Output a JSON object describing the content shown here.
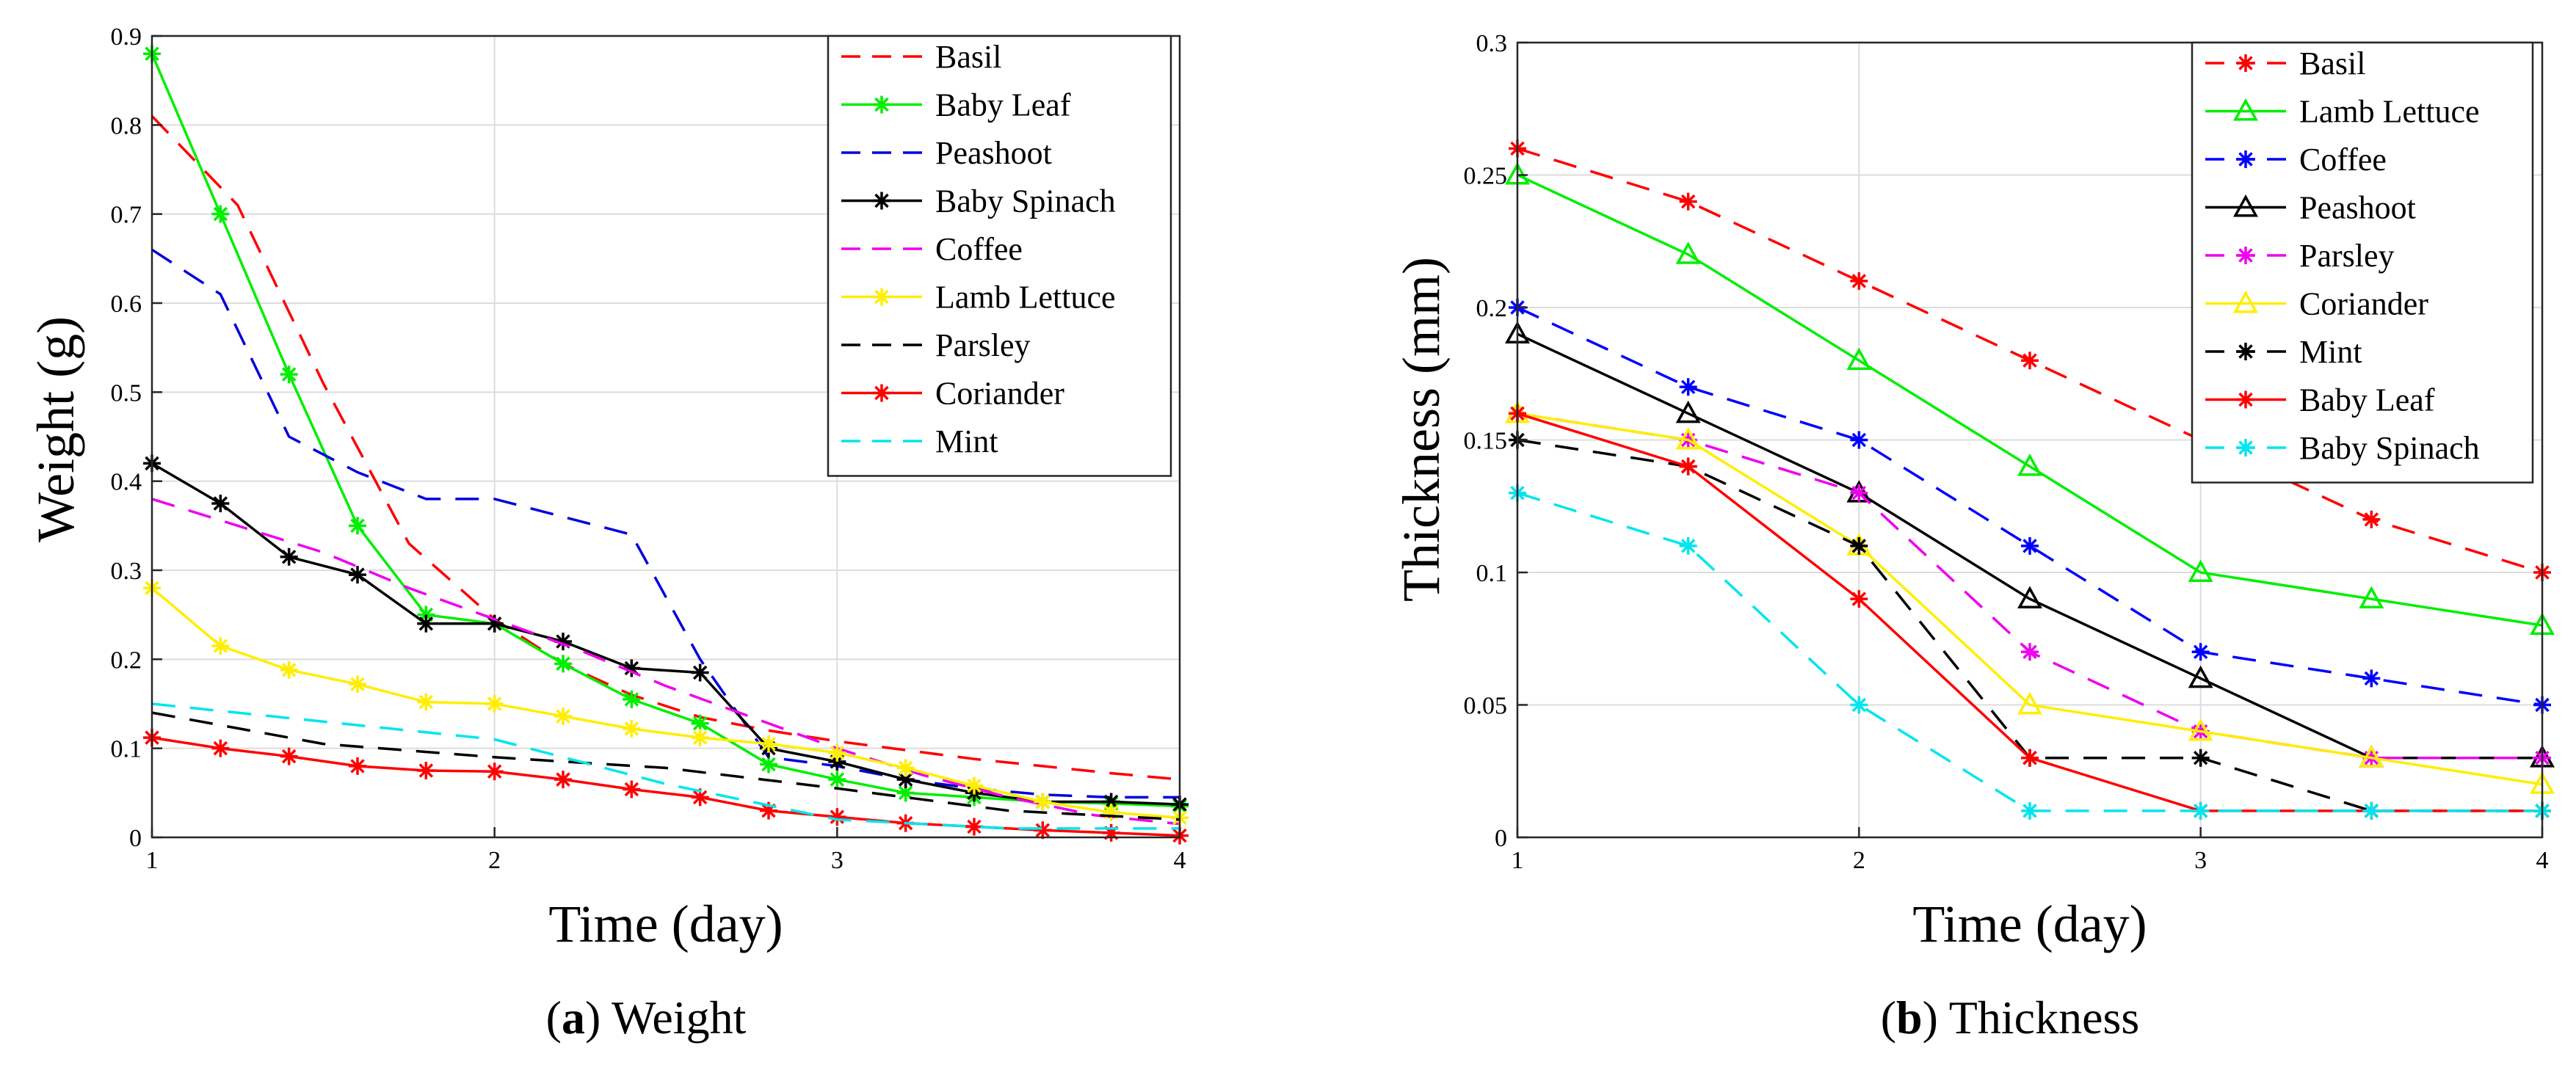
{
  "captions": [
    {
      "letter": "a",
      "text": "Weight"
    },
    {
      "letter": "b",
      "text": "Thickness"
    }
  ],
  "chart_data": [
    {
      "type": "line",
      "title": "",
      "xlabel": "Time (day)",
      "ylabel": "Weight (g)",
      "xlim": [
        1,
        4
      ],
      "ylim": [
        0,
        0.9
      ],
      "xticks": [
        1,
        2,
        3,
        4
      ],
      "yticks": [
        0,
        0.1,
        0.2,
        0.3,
        0.4,
        0.5,
        0.6,
        0.7,
        0.8,
        0.9
      ],
      "xtick_labels": [
        "1",
        "2",
        "3",
        "4"
      ],
      "ytick_labels": [
        "0",
        "0.1",
        "0.2",
        "0.3",
        "0.4",
        "0.5",
        "0.6",
        "0.7",
        "0.8",
        "0.9"
      ],
      "grid": true,
      "legend_position": "top-right",
      "series": [
        {
          "name": "Basil",
          "color": "#ff0000",
          "dash": "dashed",
          "marker": "none",
          "x": [
            1,
            1.25,
            1.5,
            1.75,
            2,
            2.2,
            2.4,
            2.6,
            2.8,
            3,
            3.2,
            3.4,
            3.6,
            3.8,
            4
          ],
          "y": [
            0.81,
            0.71,
            0.51,
            0.33,
            0.245,
            0.195,
            0.16,
            0.135,
            0.12,
            0.108,
            0.098,
            0.088,
            0.08,
            0.072,
            0.065
          ]
        },
        {
          "name": "Baby Leaf",
          "color": "#00ee00",
          "dash": "solid",
          "marker": "asterisk",
          "x": [
            1,
            1.2,
            1.4,
            1.6,
            1.8,
            2,
            2.2,
            2.4,
            2.6,
            2.8,
            3,
            3.2,
            3.4,
            3.6,
            3.8,
            4
          ],
          "y": [
            0.88,
            0.7,
            0.52,
            0.35,
            0.25,
            0.24,
            0.195,
            0.155,
            0.128,
            0.082,
            0.065,
            0.05,
            0.045,
            0.04,
            0.038,
            0.035
          ]
        },
        {
          "name": "Peashoot",
          "color": "#0000dd",
          "dash": "dashed",
          "marker": "none",
          "x": [
            1,
            1.2,
            1.4,
            1.6,
            1.8,
            2,
            2.2,
            2.4,
            2.6,
            2.8,
            3,
            3.2,
            3.4,
            3.6,
            3.8,
            4
          ],
          "y": [
            0.66,
            0.61,
            0.45,
            0.41,
            0.38,
            0.38,
            0.36,
            0.34,
            0.2,
            0.09,
            0.08,
            0.065,
            0.055,
            0.048,
            0.045,
            0.045
          ]
        },
        {
          "name": "Baby Spinach",
          "color": "#000000",
          "dash": "solid",
          "marker": "asterisk",
          "x": [
            1,
            1.2,
            1.4,
            1.6,
            1.8,
            2,
            2.2,
            2.4,
            2.6,
            2.8,
            3,
            3.2,
            3.4,
            3.6,
            3.8,
            4
          ],
          "y": [
            0.42,
            0.375,
            0.315,
            0.295,
            0.24,
            0.24,
            0.22,
            0.19,
            0.185,
            0.1,
            0.085,
            0.065,
            0.05,
            0.04,
            0.04,
            0.037
          ]
        },
        {
          "name": "Coffee",
          "color": "#ee00ee",
          "dash": "dashed",
          "marker": "none",
          "x": [
            1,
            1.25,
            1.5,
            1.75,
            2,
            2.25,
            2.5,
            2.75,
            3,
            3.25,
            3.5,
            3.75,
            4
          ],
          "y": [
            0.38,
            0.35,
            0.32,
            0.28,
            0.245,
            0.21,
            0.17,
            0.135,
            0.1,
            0.07,
            0.045,
            0.025,
            0.015
          ]
        },
        {
          "name": "Lamb Lettuce",
          "color": "#ffee00",
          "dash": "solid",
          "marker": "asterisk",
          "x": [
            1,
            1.2,
            1.4,
            1.6,
            1.8,
            2,
            2.2,
            2.4,
            2.6,
            2.8,
            3,
            3.2,
            3.4,
            3.6,
            3.8,
            4
          ],
          "y": [
            0.28,
            0.215,
            0.188,
            0.172,
            0.152,
            0.15,
            0.136,
            0.122,
            0.112,
            0.105,
            0.095,
            0.078,
            0.058,
            0.04,
            0.028,
            0.022
          ]
        },
        {
          "name": "Parsley",
          "color": "#000000",
          "dash": "dashed",
          "marker": "none",
          "x": [
            1,
            1.5,
            2,
            2.5,
            3,
            3.5,
            4
          ],
          "y": [
            0.14,
            0.105,
            0.09,
            0.078,
            0.055,
            0.03,
            0.02
          ]
        },
        {
          "name": "Coriander",
          "color": "#ff0000",
          "dash": "solid",
          "marker": "asterisk",
          "x": [
            1,
            1.2,
            1.4,
            1.6,
            1.8,
            2,
            2.2,
            2.4,
            2.6,
            2.8,
            3,
            3.2,
            3.4,
            3.6,
            3.8,
            4
          ],
          "y": [
            0.112,
            0.1,
            0.091,
            0.08,
            0.075,
            0.074,
            0.065,
            0.054,
            0.045,
            0.03,
            0.023,
            0.016,
            0.012,
            0.008,
            0.005,
            0.002
          ]
        },
        {
          "name": "Mint",
          "color": "#00e5ee",
          "dash": "dashed",
          "marker": "none",
          "x": [
            1,
            1.5,
            2,
            2.5,
            3,
            3.5,
            4
          ],
          "y": [
            0.15,
            0.13,
            0.11,
            0.06,
            0.02,
            0.01,
            0.01
          ]
        }
      ]
    },
    {
      "type": "line",
      "title": "",
      "xlabel": "Time (day)",
      "ylabel": "Thickness (mm)",
      "xlim": [
        1,
        4
      ],
      "ylim": [
        0,
        0.3
      ],
      "xticks": [
        1,
        2,
        3,
        4
      ],
      "yticks": [
        0,
        0.05,
        0.1,
        0.15,
        0.2,
        0.25,
        0.3
      ],
      "xtick_labels": [
        "1",
        "2",
        "3",
        "4"
      ],
      "ytick_labels": [
        "0",
        "0.05",
        "0.1",
        "0.15",
        "0.2",
        "0.25",
        "0.3"
      ],
      "grid": true,
      "legend_position": "top-right",
      "series": [
        {
          "name": "Basil",
          "color": "#ff0000",
          "dash": "dashed",
          "marker": "asterisk",
          "x": [
            1,
            1.5,
            2,
            2.5,
            3,
            3.5,
            4
          ],
          "y": [
            0.26,
            0.24,
            0.21,
            0.18,
            0.15,
            0.12,
            0.1
          ]
        },
        {
          "name": "Lamb Lettuce",
          "color": "#00ee00",
          "dash": "solid",
          "marker": "triangle",
          "x": [
            1,
            1.5,
            2,
            2.5,
            3,
            3.5,
            4
          ],
          "y": [
            0.25,
            0.22,
            0.18,
            0.14,
            0.1,
            0.09,
            0.08
          ]
        },
        {
          "name": "Coffee",
          "color": "#0000ff",
          "dash": "dashed",
          "marker": "asterisk",
          "x": [
            1,
            1.5,
            2,
            2.5,
            3,
            3.5,
            4
          ],
          "y": [
            0.2,
            0.17,
            0.15,
            0.11,
            0.07,
            0.06,
            0.05
          ]
        },
        {
          "name": "Peashoot",
          "color": "#000000",
          "dash": "solid",
          "marker": "triangle",
          "x": [
            1,
            1.5,
            2,
            2.5,
            3,
            3.5,
            4
          ],
          "y": [
            0.19,
            0.16,
            0.13,
            0.09,
            0.06,
            0.03,
            0.03
          ]
        },
        {
          "name": "Parsley",
          "color": "#ee00ee",
          "dash": "dashed",
          "marker": "asterisk",
          "x": [
            1,
            1.5,
            2,
            2.5,
            3,
            3.5,
            4
          ],
          "y": [
            0.16,
            0.15,
            0.13,
            0.07,
            0.04,
            0.03,
            0.03
          ]
        },
        {
          "name": "Coriander",
          "color": "#ffee00",
          "dash": "solid",
          "marker": "triangle",
          "x": [
            1,
            1.5,
            2,
            2.5,
            3,
            3.5,
            4
          ],
          "y": [
            0.16,
            0.15,
            0.11,
            0.05,
            0.04,
            0.03,
            0.02
          ]
        },
        {
          "name": "Mint",
          "color": "#000000",
          "dash": "dashed",
          "marker": "asterisk",
          "x": [
            1,
            1.5,
            2,
            2.5,
            3,
            3.5,
            4
          ],
          "y": [
            0.15,
            0.14,
            0.11,
            0.03,
            0.03,
            0.01,
            0.01
          ]
        },
        {
          "name": "Baby Leaf",
          "color": "#ff0000",
          "dash": "solid",
          "marker": "asterisk",
          "x": [
            1,
            1.5,
            2,
            2.5,
            3,
            3.5,
            4
          ],
          "y": [
            0.16,
            0.14,
            0.09,
            0.03,
            0.01,
            0.01,
            0.01
          ]
        },
        {
          "name": "Baby Spinach",
          "color": "#00e5ee",
          "dash": "dashed",
          "marker": "asterisk",
          "x": [
            1,
            1.5,
            2,
            2.5,
            3,
            3.5,
            4
          ],
          "y": [
            0.13,
            0.11,
            0.05,
            0.01,
            0.01,
            0.01,
            0.01
          ]
        }
      ]
    }
  ]
}
